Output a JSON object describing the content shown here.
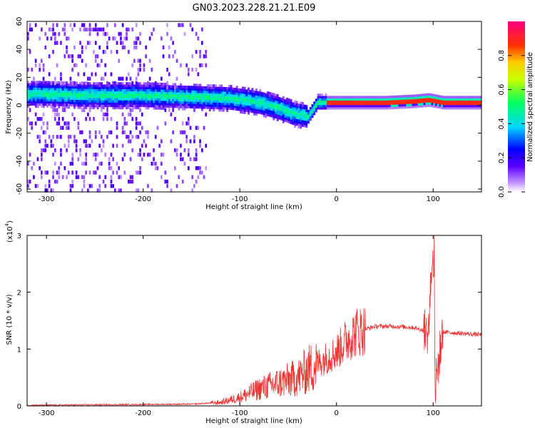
{
  "title": "GN03.2023.228.21.21.E09",
  "chart_data": [
    {
      "type": "heatmap",
      "xlabel": "Height of straight line (km)",
      "ylabel": "Frequency (Hz)",
      "xlim": [
        -320,
        150
      ],
      "ylim": [
        -62,
        60
      ],
      "xticks": [
        -300,
        -200,
        -100,
        0,
        100
      ],
      "yticks": [
        -60,
        -40,
        -20,
        0,
        20,
        40,
        60
      ],
      "colorbar": {
        "label": "Normalized spectral amplitude",
        "range": [
          0,
          1
        ],
        "ticks": [
          "0.0",
          "0.2",
          "0.4",
          "0.6",
          "0.8"
        ],
        "colors": [
          "#ffffff",
          "#c89bff",
          "#5a00ff",
          "#0000ff",
          "#00d8ff",
          "#00ff60",
          "#c8ff00",
          "#ffcc00",
          "#ff3000",
          "#ff0080"
        ]
      },
      "ridge": {
        "x": [
          -310,
          -250,
          -200,
          -150,
          -110,
          -80,
          -60,
          -45,
          -30,
          -20,
          0,
          50,
          80,
          95,
          110,
          150
        ],
        "y": [
          8,
          7,
          7,
          6,
          5,
          2,
          -2,
          -6,
          -8,
          2,
          2,
          2,
          3,
          4,
          2,
          2
        ]
      }
    },
    {
      "type": "line",
      "xlabel": "Height of straight line (km)",
      "ylabel": "SNR (10 * v/v)",
      "scale_label": "(x10",
      "scale_exp": "4",
      "xlim": [
        -320,
        150
      ],
      "ylim": [
        0,
        3
      ],
      "xticks": [
        -300,
        -200,
        -100,
        0,
        100
      ],
      "yticks": [
        0,
        1,
        2,
        3
      ],
      "series": [
        {
          "color": "#ee3333",
          "x": [
            -320,
            -250,
            -150,
            -120,
            -100,
            -80,
            -60,
            -40,
            -20,
            0,
            10,
            20,
            40,
            60,
            80,
            95,
            100,
            102,
            110,
            150
          ],
          "y": [
            0.01,
            0.02,
            0.03,
            0.06,
            0.15,
            0.3,
            0.4,
            0.5,
            0.75,
            0.95,
            1.15,
            1.3,
            1.4,
            1.4,
            1.38,
            1.3,
            3.0,
            0.3,
            1.3,
            1.25
          ]
        }
      ]
    }
  ]
}
